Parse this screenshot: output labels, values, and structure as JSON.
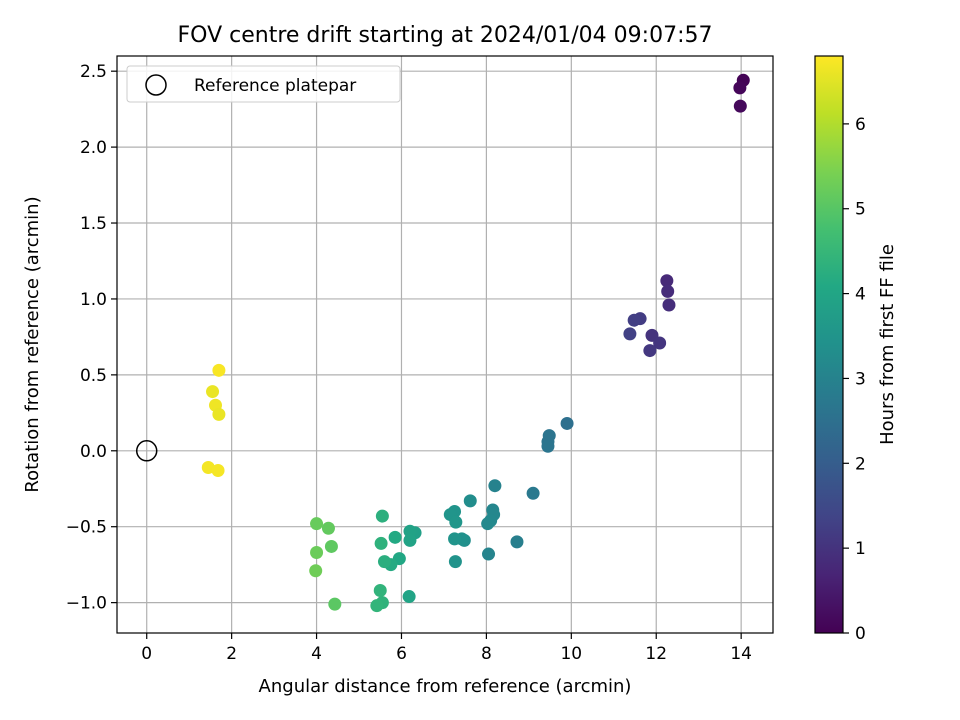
{
  "chart_data": {
    "type": "scatter",
    "title": "FOV centre drift starting at 2024/01/04 09:07:57",
    "xlabel": "Angular distance from reference (arcmin)",
    "ylabel": "Rotation from reference (arcmin)",
    "xlim": [
      -0.7,
      14.75
    ],
    "ylim": [
      -1.2,
      2.6
    ],
    "xticks": [
      0,
      2,
      4,
      6,
      8,
      10,
      12,
      14
    ],
    "yticks": [
      -1.0,
      -0.5,
      0.0,
      0.5,
      1.0,
      1.5,
      2.0,
      2.5
    ],
    "xtick_labels": [
      "0",
      "2",
      "4",
      "6",
      "8",
      "10",
      "12",
      "14"
    ],
    "ytick_labels": [
      "−1.0",
      "−0.5",
      "0.0",
      "0.5",
      "1.0",
      "1.5",
      "2.0",
      "2.5"
    ],
    "grid": true,
    "legend_position": "top-left",
    "reference": {
      "x": 0.0,
      "y": 0.0,
      "label": "Reference platepar"
    },
    "colorbar": {
      "label": "Hours from first FF file",
      "min": 0.0,
      "max": 6.8,
      "ticks": [
        0,
        1,
        2,
        3,
        4,
        5,
        6
      ],
      "tick_labels": [
        "0",
        "1",
        "2",
        "3",
        "4",
        "5",
        "6"
      ],
      "colormap": "viridis"
    },
    "points": [
      {
        "x": 14.05,
        "y": 2.44,
        "h": 0.05
      },
      {
        "x": 13.97,
        "y": 2.39,
        "h": 0.1
      },
      {
        "x": 13.98,
        "y": 2.27,
        "h": 0.15
      },
      {
        "x": 12.25,
        "y": 1.12,
        "h": 0.8
      },
      {
        "x": 12.27,
        "y": 1.05,
        "h": 0.85
      },
      {
        "x": 12.3,
        "y": 0.96,
        "h": 0.9
      },
      {
        "x": 11.9,
        "y": 0.76,
        "h": 1.0
      },
      {
        "x": 12.08,
        "y": 0.71,
        "h": 1.05
      },
      {
        "x": 11.85,
        "y": 0.66,
        "h": 1.1
      },
      {
        "x": 11.62,
        "y": 0.87,
        "h": 1.2
      },
      {
        "x": 11.48,
        "y": 0.86,
        "h": 1.25
      },
      {
        "x": 11.38,
        "y": 0.77,
        "h": 1.3
      },
      {
        "x": 9.9,
        "y": 0.18,
        "h": 2.5
      },
      {
        "x": 9.48,
        "y": 0.1,
        "h": 2.6
      },
      {
        "x": 9.45,
        "y": 0.06,
        "h": 2.62
      },
      {
        "x": 9.45,
        "y": 0.03,
        "h": 2.65
      },
      {
        "x": 9.1,
        "y": -0.28,
        "h": 2.75
      },
      {
        "x": 8.72,
        "y": -0.6,
        "h": 2.9
      },
      {
        "x": 8.2,
        "y": -0.23,
        "h": 3.0
      },
      {
        "x": 8.05,
        "y": -0.68,
        "h": 3.05
      },
      {
        "x": 8.15,
        "y": -0.39,
        "h": 3.1
      },
      {
        "x": 8.17,
        "y": -0.42,
        "h": 3.12
      },
      {
        "x": 8.1,
        "y": -0.46,
        "h": 3.15
      },
      {
        "x": 8.03,
        "y": -0.48,
        "h": 3.18
      },
      {
        "x": 7.62,
        "y": -0.33,
        "h": 3.3
      },
      {
        "x": 7.48,
        "y": -0.59,
        "h": 3.35
      },
      {
        "x": 7.42,
        "y": -0.58,
        "h": 3.4
      },
      {
        "x": 7.27,
        "y": -0.73,
        "h": 3.45
      },
      {
        "x": 7.25,
        "y": -0.58,
        "h": 3.48
      },
      {
        "x": 7.25,
        "y": -0.4,
        "h": 3.5
      },
      {
        "x": 7.15,
        "y": -0.42,
        "h": 3.52
      },
      {
        "x": 7.28,
        "y": -0.47,
        "h": 3.55
      },
      {
        "x": 6.32,
        "y": -0.54,
        "h": 3.85
      },
      {
        "x": 6.2,
        "y": -0.53,
        "h": 3.9
      },
      {
        "x": 6.2,
        "y": -0.59,
        "h": 3.92
      },
      {
        "x": 6.18,
        "y": -0.96,
        "h": 3.95
      },
      {
        "x": 5.95,
        "y": -0.71,
        "h": 4.05
      },
      {
        "x": 5.85,
        "y": -0.57,
        "h": 4.1
      },
      {
        "x": 5.75,
        "y": -0.75,
        "h": 4.15
      },
      {
        "x": 5.6,
        "y": -0.73,
        "h": 4.25
      },
      {
        "x": 5.55,
        "y": -0.43,
        "h": 4.3
      },
      {
        "x": 5.52,
        "y": -0.61,
        "h": 4.35
      },
      {
        "x": 5.55,
        "y": -1.0,
        "h": 4.38
      },
      {
        "x": 5.5,
        "y": -0.92,
        "h": 4.4
      },
      {
        "x": 5.42,
        "y": -1.02,
        "h": 4.42
      },
      {
        "x": 4.43,
        "y": -1.01,
        "h": 5.05
      },
      {
        "x": 4.35,
        "y": -0.63,
        "h": 5.1
      },
      {
        "x": 4.28,
        "y": -0.51,
        "h": 5.15
      },
      {
        "x": 4.0,
        "y": -0.48,
        "h": 5.2
      },
      {
        "x": 4.0,
        "y": -0.67,
        "h": 5.25
      },
      {
        "x": 3.98,
        "y": -0.79,
        "h": 5.3
      },
      {
        "x": 1.7,
        "y": 0.53,
        "h": 6.75
      },
      {
        "x": 1.55,
        "y": 0.39,
        "h": 6.6
      },
      {
        "x": 1.62,
        "y": 0.3,
        "h": 6.65
      },
      {
        "x": 1.7,
        "y": 0.24,
        "h": 6.6
      },
      {
        "x": 1.45,
        "y": -0.11,
        "h": 6.7
      },
      {
        "x": 1.68,
        "y": -0.13,
        "h": 6.72
      }
    ]
  }
}
